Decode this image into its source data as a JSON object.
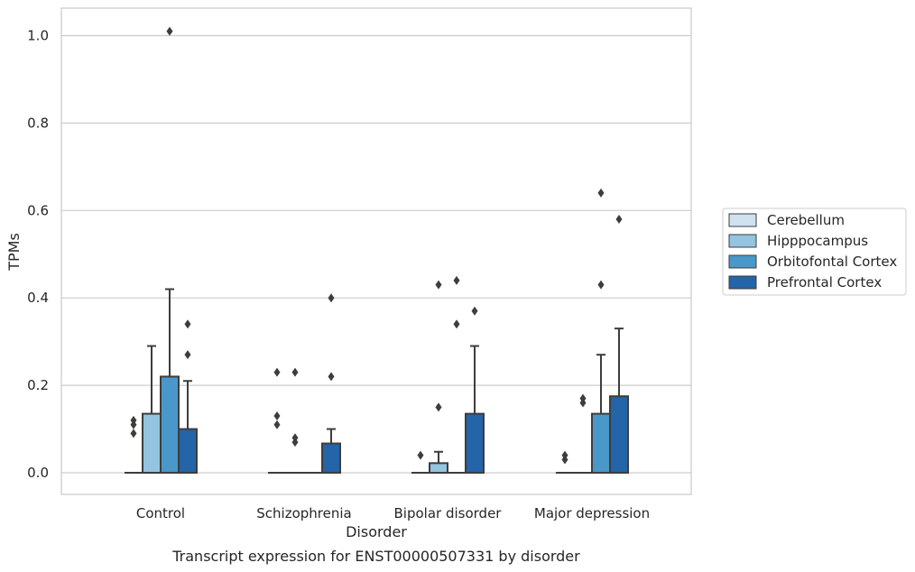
{
  "chart_data": {
    "type": "bar",
    "caption": "Transcript expression for ENST00000507331 by disorder",
    "xlabel": "Disorder",
    "ylabel": "TPMs",
    "ylim": [
      -0.05,
      1.06
    ],
    "yticks": [
      0.0,
      0.2,
      0.4,
      0.6,
      0.8,
      1.0
    ],
    "ytick_labels": [
      "0.0",
      "0.2",
      "0.4",
      "0.6",
      "0.8",
      "1.0"
    ],
    "categories": [
      "Control",
      "Schizophrenia",
      "Bipolar disorder",
      "Major depression"
    ],
    "grid": "horizontal",
    "legend_position": "right, outside plot",
    "series": [
      {
        "name": "Cerebellum",
        "color": "#d0e1f2",
        "values": [
          0.0,
          0.0,
          0.0,
          0.0
        ],
        "error_upper": [
          0.0,
          0.0,
          0.0,
          0.0
        ],
        "outliers": [
          [
            0.09,
            0.11,
            0.12
          ],
          [
            0.11,
            0.13,
            0.23
          ],
          [
            0.04
          ],
          [
            0.03,
            0.04
          ]
        ]
      },
      {
        "name": "Hipppocampus",
        "color": "#94c4df",
        "values": [
          0.135,
          0.0,
          0.022,
          0.0
        ],
        "error_upper": [
          0.29,
          0.0,
          0.048,
          0.0
        ],
        "outliers": [
          [],
          [
            0.07,
            0.08,
            0.23
          ],
          [
            0.15,
            0.43
          ],
          [
            0.16,
            0.17
          ]
        ]
      },
      {
        "name": "Orbitofontal Cortex",
        "color": "#4a98c9",
        "values": [
          0.22,
          0.0,
          0.0,
          0.135
        ],
        "error_upper": [
          0.42,
          0.0,
          0.0,
          0.27
        ],
        "outliers": [
          [
            1.01
          ],
          [],
          [
            0.34,
            0.44
          ],
          [
            0.43,
            0.64
          ]
        ]
      },
      {
        "name": "Prefrontal Cortex",
        "color": "#2464a8",
        "values": [
          0.1,
          0.067,
          0.135,
          0.175
        ],
        "error_upper": [
          0.21,
          0.1,
          0.29,
          0.33
        ],
        "outliers": [
          [
            0.27,
            0.34
          ],
          [
            0.22,
            0.4
          ],
          [
            0.37
          ],
          [
            0.58
          ]
        ]
      }
    ]
  }
}
